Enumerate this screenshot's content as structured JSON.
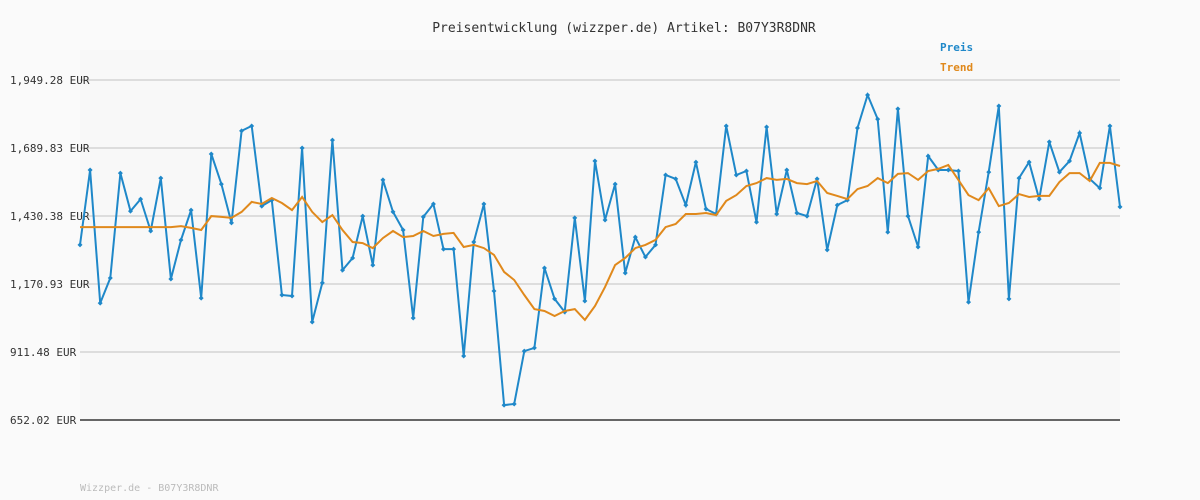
{
  "chart_data": {
    "type": "line",
    "title": "Preisentwicklung (wizzper.de) Artikel: B07Y3R8DNR",
    "footer": "Wizzper.de - B07Y3R8DNR",
    "ylim": [
      652.02,
      1949.28
    ],
    "yticks": [
      {
        "value": 652.02,
        "label": "652.02 EUR"
      },
      {
        "value": 911.48,
        "label": "911.48 EUR"
      },
      {
        "value": 1170.93,
        "label": "1,170.93 EUR"
      },
      {
        "value": 1430.38,
        "label": "1,430.38 EUR"
      },
      {
        "value": 1689.83,
        "label": "1,689.83 EUR"
      },
      {
        "value": 1949.28,
        "label": "1,949.28 EUR"
      }
    ],
    "grid": true,
    "legend": "top-right",
    "series": [
      {
        "name": "Preis",
        "color": "#1f88c9",
        "markers": true,
        "values": [
          1320,
          1606,
          1098,
          1194,
          1594,
          1449,
          1495,
          1373,
          1575,
          1190,
          1339,
          1453,
          1117,
          1667,
          1552,
          1404,
          1755,
          1774,
          1468,
          1491,
          1129,
          1125,
          1690,
          1026,
          1175,
          1720,
          1224,
          1270,
          1430,
          1243,
          1568,
          1446,
          1377,
          1041,
          1427,
          1476,
          1304,
          1304,
          896,
          1331,
          1476,
          1144,
          709,
          713,
          915,
          927,
          1232,
          1114,
          1064,
          1423,
          1106,
          1640,
          1415,
          1552,
          1213,
          1350,
          1274,
          1320,
          1587,
          1572,
          1472,
          1636,
          1457,
          1438,
          1774,
          1587,
          1602,
          1407,
          1770,
          1438,
          1606,
          1442,
          1430,
          1572,
          1301,
          1472,
          1491,
          1766,
          1892,
          1800,
          1369,
          1839,
          1430,
          1312,
          1659,
          1606,
          1606,
          1602,
          1102,
          1369,
          1598,
          1850,
          1114,
          1575,
          1636,
          1495,
          1713,
          1598,
          1640,
          1747,
          1572,
          1537,
          1774,
          1465
        ]
      },
      {
        "name": "Trend",
        "color": "#e0891c",
        "markers": false,
        "values": [
          1388,
          1388,
          1388,
          1388,
          1388,
          1388,
          1388,
          1388,
          1388,
          1388,
          1392,
          1385,
          1377,
          1430,
          1427,
          1423,
          1446,
          1484,
          1476,
          1499,
          1480,
          1453,
          1503,
          1446,
          1407,
          1434,
          1377,
          1331,
          1327,
          1308,
          1346,
          1373,
          1350,
          1354,
          1373,
          1354,
          1362,
          1366,
          1312,
          1320,
          1308,
          1282,
          1217,
          1186,
          1129,
          1075,
          1068,
          1049,
          1068,
          1075,
          1034,
          1087,
          1159,
          1243,
          1270,
          1308,
          1320,
          1339,
          1388,
          1400,
          1438,
          1438,
          1442,
          1434,
          1488,
          1510,
          1545,
          1556,
          1575,
          1568,
          1572,
          1556,
          1552,
          1564,
          1518,
          1507,
          1495,
          1533,
          1545,
          1575,
          1556,
          1591,
          1594,
          1568,
          1602,
          1610,
          1625,
          1568,
          1510,
          1491,
          1537,
          1468,
          1480,
          1514,
          1503,
          1507,
          1507,
          1560,
          1594,
          1594,
          1564,
          1633,
          1633,
          1621
        ]
      }
    ]
  }
}
